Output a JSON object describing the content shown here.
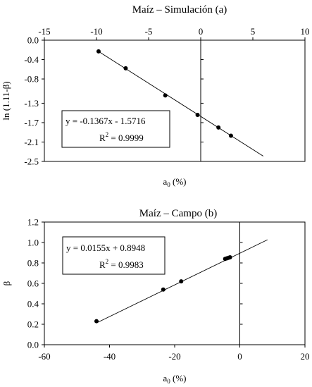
{
  "chart_data": [
    {
      "type": "scatter",
      "title": "Maíz – Simulación (a)",
      "xlabel_main": "a",
      "xlabel_sub": "0",
      "xlabel_unit": " (%)",
      "ylabel": "ln (1.11-β)",
      "xlim": [
        -15,
        10
      ],
      "ylim": [
        -2.5,
        0
      ],
      "xticks": [
        -15,
        -10,
        -5,
        0,
        5,
        10
      ],
      "xtick_labels": [
        "-15",
        "-10",
        "-5",
        "0",
        "5",
        "10"
      ],
      "yticks": [
        0,
        -0.4,
        -0.8,
        -1.3,
        -1.7,
        -2.1,
        -2.5
      ],
      "ytick_labels": [
        "0.0",
        "-0.4",
        "-0.8",
        "-1.3",
        "-1.7",
        "-2.1",
        "-2.5"
      ],
      "x_axis_position": "top",
      "points": {
        "x": [
          -9.8,
          -7.2,
          -3.4,
          -0.3,
          1.7,
          2.9
        ],
        "y": [
          -0.23,
          -0.58,
          -1.14,
          -1.54,
          -1.8,
          -1.97
        ]
      },
      "trendline": {
        "slope": -0.1367,
        "intercept": -1.5716,
        "x_range": [
          -9.8,
          6.0
        ]
      },
      "equation": "y = -0.1367x - 1.5716",
      "r2_label": "R",
      "r2_sup": "2",
      "r2_value": " = 0.9999"
    },
    {
      "type": "scatter",
      "title": "Maíz – Campo (b)",
      "xlabel_main": "a",
      "xlabel_sub": "0",
      "xlabel_unit": " (%)",
      "ylabel": "β",
      "xlim": [
        -60,
        20
      ],
      "ylim": [
        0,
        1.2
      ],
      "xticks": [
        -60,
        -40,
        -20,
        0,
        20
      ],
      "xtick_labels": [
        "-60",
        "-40",
        "-20",
        "0",
        "20"
      ],
      "yticks": [
        0,
        0.2,
        0.4,
        0.6,
        0.8,
        1.0,
        1.2
      ],
      "ytick_labels": [
        "0.0",
        "0.2",
        "0.4",
        "0.6",
        "0.8",
        "1.0",
        "1.2"
      ],
      "x_axis_position": "bottom",
      "points": {
        "x": [
          -44,
          -23.5,
          -18,
          -4.5,
          -4,
          -3.5,
          -3
        ],
        "y": [
          0.23,
          0.54,
          0.62,
          0.84,
          0.845,
          0.85,
          0.855
        ]
      },
      "trendline": {
        "slope": 0.0155,
        "intercept": 0.8948,
        "x_range": [
          -44,
          8.5
        ]
      },
      "equation": "y = 0.0155x + 0.8948",
      "r2_label": "R",
      "r2_sup": "2",
      "r2_value": " = 0.9983"
    }
  ]
}
